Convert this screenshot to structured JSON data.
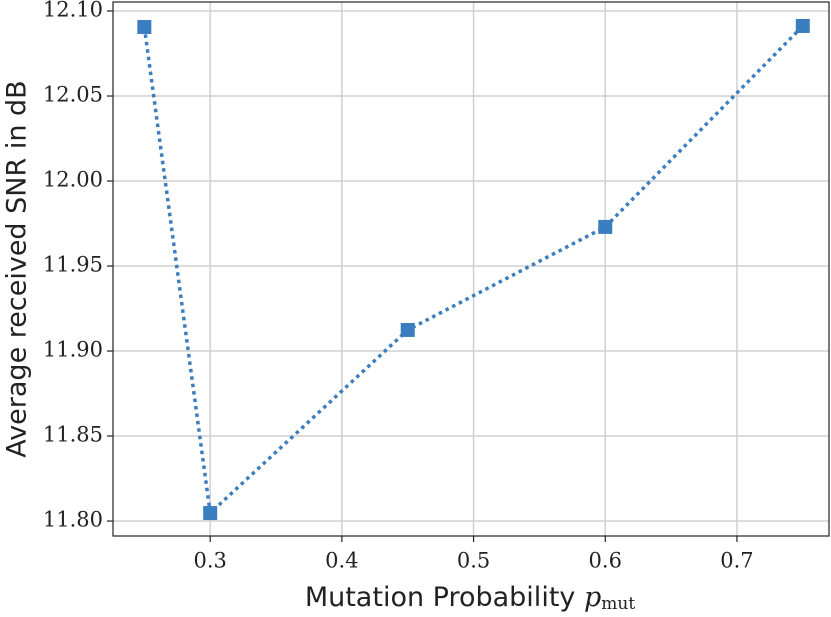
{
  "chart_data": {
    "type": "line",
    "xlabel": "Mutation Probability",
    "xlabel_symbol": "p",
    "xlabel_subscript": "mut",
    "ylabel": "Average received SNR in dB",
    "x": [
      0.25,
      0.3,
      0.45,
      0.6,
      0.75
    ],
    "series": [
      {
        "color": "#3b7ebf",
        "values": [
          12.0906,
          11.8047,
          11.9124,
          11.973,
          12.0912
        ]
      }
    ],
    "xlim": [
      0.2262,
      0.7699
    ],
    "ylim": [
      11.7912,
      12.1053
    ],
    "xticks": [
      0.3,
      0.4,
      0.5,
      0.6,
      0.7
    ],
    "yticks": [
      {
        "value": 11.8,
        "label": "11.80"
      },
      11.85,
      {
        "value": 11.9,
        "label": "11.90"
      },
      11.95,
      {
        "value": 12.0,
        "label": "12.00"
      },
      12.05,
      {
        "value": 12.1,
        "label": "12.10"
      }
    ],
    "grid": true
  }
}
